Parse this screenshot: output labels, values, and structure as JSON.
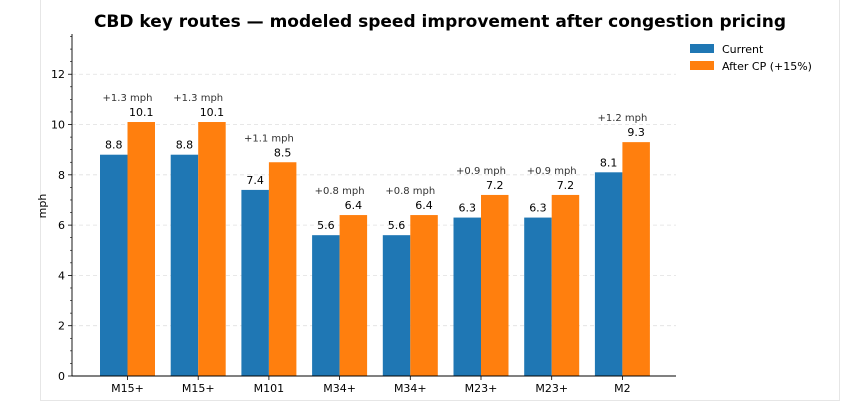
{
  "chart_data": {
    "type": "bar",
    "title": "CBD key routes — modeled speed improvement after congestion pricing",
    "xlabel": "",
    "ylabel": "mph",
    "ylim": [
      0,
      13.6
    ],
    "yticks": [
      0,
      2,
      4,
      6,
      8,
      10,
      12
    ],
    "grid": "horizontal dashed",
    "legend_position": "top-right",
    "categories": [
      "M15+",
      "M15+",
      "M101",
      "M34+",
      "M34+",
      "M23+",
      "M23+",
      "M2"
    ],
    "series": [
      {
        "name": "Current",
        "color": "#1f77b4",
        "values": [
          8.8,
          8.8,
          7.4,
          5.6,
          5.6,
          6.3,
          6.3,
          8.1
        ],
        "labels": [
          "8.8",
          "8.8",
          "7.4",
          "5.6",
          "5.6",
          "6.3",
          "6.3",
          "8.1"
        ]
      },
      {
        "name": "After CP (+15%)",
        "color": "#ff7f0e",
        "values": [
          10.1,
          10.1,
          8.5,
          6.4,
          6.4,
          7.2,
          7.2,
          9.3
        ],
        "labels": [
          "10.1",
          "10.1",
          "8.5",
          "6.4",
          "6.4",
          "7.2",
          "7.2",
          "9.3"
        ]
      }
    ],
    "annotations": [
      "+1.3 mph",
      "+1.3 mph",
      "+1.1 mph",
      "+0.8 mph",
      "+0.8 mph",
      "+0.9 mph",
      "+0.9 mph",
      "+1.2 mph"
    ]
  }
}
